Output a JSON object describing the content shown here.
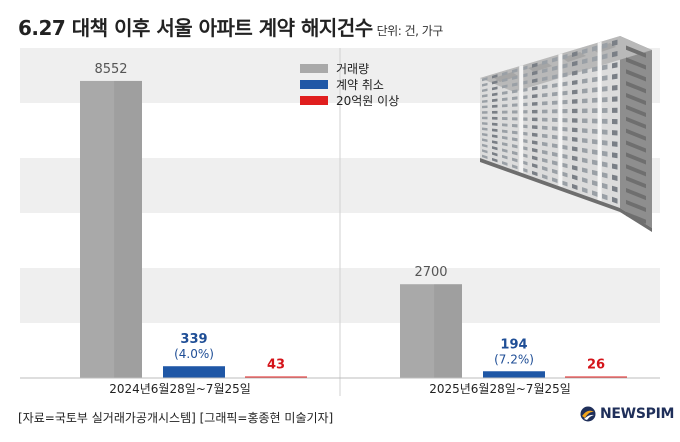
{
  "title": "6.27 대책 이후 서울 아파트 계약 해지건수",
  "unit": "단위: 건, 가구",
  "chart_data": {
    "type": "bar",
    "categories": [
      "2024년6월28일~7월25일",
      "2025년6월28일~7월25일"
    ],
    "series": [
      {
        "name": "거래량",
        "values": [
          8552,
          2700
        ],
        "labels": [
          "8552",
          "2700"
        ],
        "sublabels": [
          "",
          ""
        ]
      },
      {
        "name": "계약 취소",
        "values": [
          339,
          194
        ],
        "labels": [
          "339",
          "194"
        ],
        "sublabels": [
          "(4.0%)",
          "(7.2%)"
        ]
      },
      {
        "name": "20억원 이상",
        "values": [
          43,
          26
        ],
        "labels": [
          "43",
          "26"
        ],
        "sublabels": [
          "",
          ""
        ]
      }
    ],
    "colors": [
      "#a9a9a9",
      "#1f57a6",
      "#e01e1e"
    ],
    "label_colors": [
      "#555555",
      "#1f4e96",
      "#d4141a"
    ],
    "ylim": [
      0,
      9500
    ],
    "legend_position": "top-center"
  },
  "source": "[자료=국토부 실거래가공개시스템] [그래픽=홍종현 미술기자]",
  "brand": "NEWSPIM"
}
